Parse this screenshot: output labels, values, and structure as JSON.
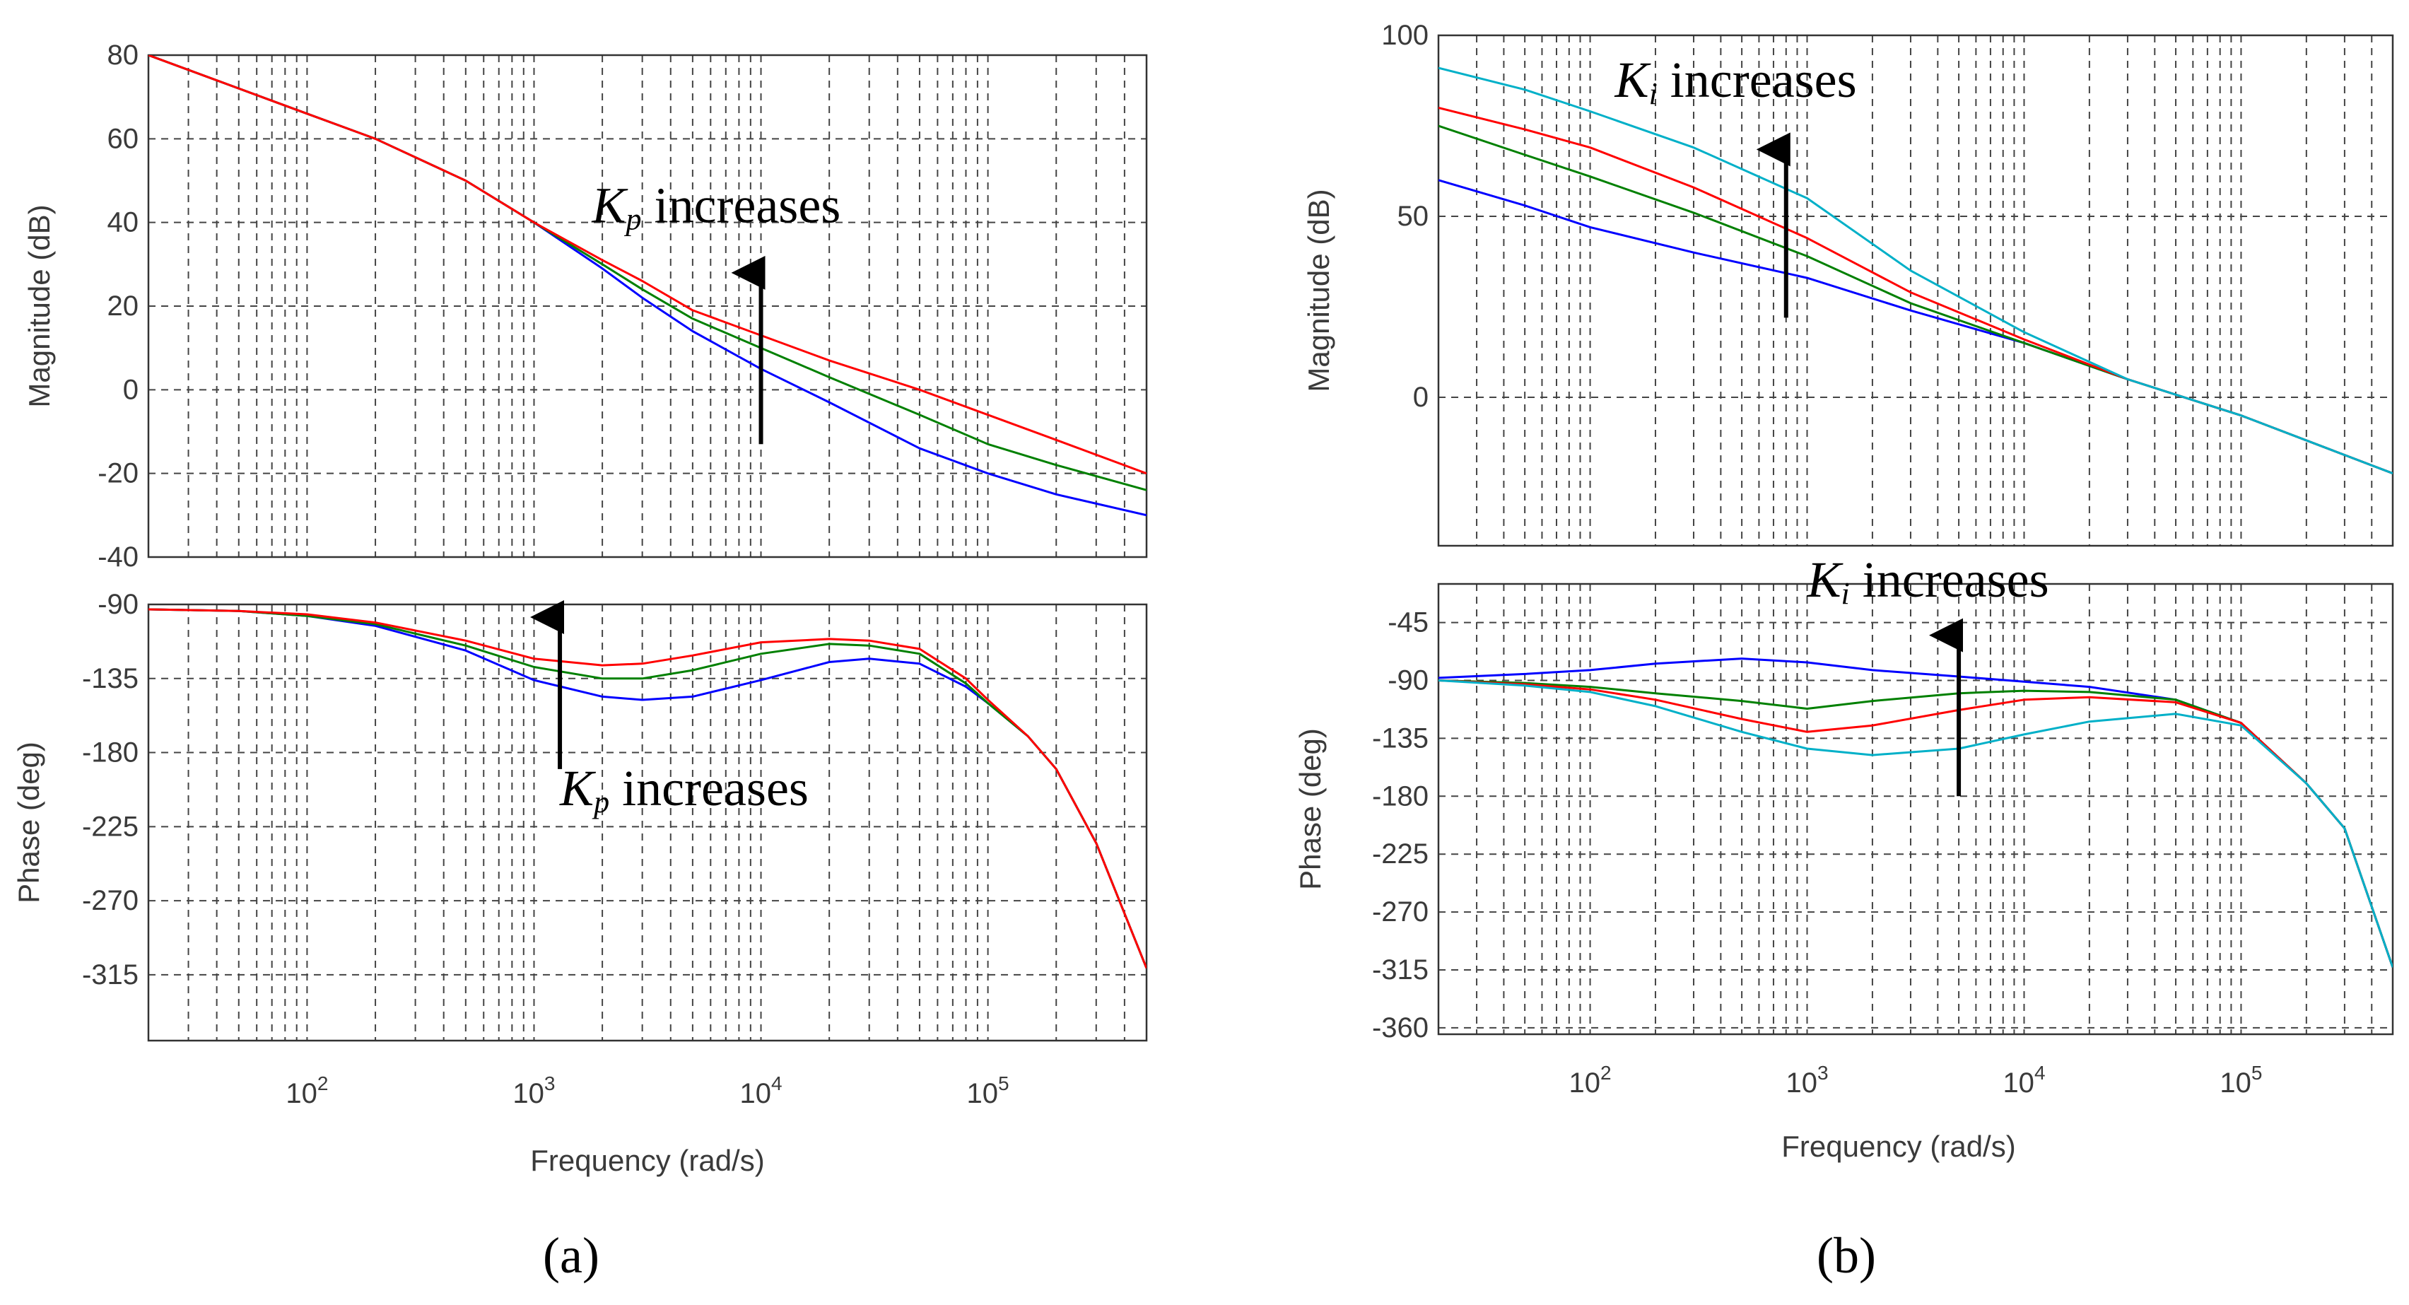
{
  "chart_data": [
    {
      "panel_label": "(a)",
      "type": "line",
      "xlabel": "Frequency  (rad/s)",
      "xscale": "log",
      "xlim": [
        20,
        500000
      ],
      "xticks": [
        100,
        1000,
        10000,
        100000
      ],
      "xtick_base": "10",
      "xtick_exponents": [
        "2",
        "3",
        "4",
        "5"
      ],
      "grid": true,
      "colors": [
        "#0000ff",
        "#008000",
        "#ff0000"
      ],
      "subplots": [
        {
          "name": "magnitude",
          "ylabel": "Magnitude (dB)",
          "ylim": [
            -40,
            80
          ],
          "yticks": [
            -40,
            -20,
            0,
            20,
            40,
            60,
            80
          ],
          "annotation": {
            "symbol": "K",
            "subscript": "p",
            "text": " increases",
            "arrow_x": 10000,
            "arrow_from": -13,
            "arrow_to": 31,
            "text_at": [
              1800,
              40
            ]
          },
          "x": [
            20,
            100,
            200,
            500,
            1000,
            2000,
            3000,
            5000,
            10000,
            20000,
            50000,
            100000,
            200000,
            500000
          ],
          "series": [
            {
              "color": "#0000ff",
              "values": [
                80,
                66,
                60,
                50,
                40,
                29,
                22,
                14,
                5,
                -3,
                -14,
                -20,
                -25,
                -30
              ]
            },
            {
              "color": "#008000",
              "values": [
                80,
                66,
                60,
                50,
                40,
                30,
                24,
                17,
                10,
                3,
                -6,
                -13,
                -18,
                -24
              ]
            },
            {
              "color": "#ff0000",
              "values": [
                80,
                66,
                60,
                50,
                40,
                31,
                26,
                19,
                13,
                7,
                0,
                -6,
                -12,
                -20
              ]
            }
          ]
        },
        {
          "name": "phase",
          "ylabel": "Phase (deg)",
          "ylim": [
            -355,
            -90
          ],
          "yticks": [
            -90,
            -135,
            -180,
            -225,
            -270,
            -315
          ],
          "annotation": {
            "symbol": "K",
            "subscript": "p",
            "text": " increases",
            "arrow_x": 1300,
            "arrow_from": -190,
            "arrow_to": -90,
            "text_at": [
              1300,
              -212
            ]
          },
          "x": [
            20,
            50,
            100,
            200,
            500,
            1000,
            2000,
            3000,
            5000,
            10000,
            20000,
            30000,
            50000,
            80000,
            100000,
            150000,
            200000,
            300000,
            500000
          ],
          "series": [
            {
              "color": "#0000ff",
              "values": [
                -93,
                -94,
                -97,
                -103,
                -118,
                -136,
                -146,
                -148,
                -146,
                -136,
                -125,
                -123,
                -126,
                -140,
                -150,
                -170,
                -190,
                -235,
                -311
              ]
            },
            {
              "color": "#008000",
              "values": [
                -93,
                -94,
                -97,
                -102,
                -115,
                -128,
                -135,
                -135,
                -130,
                -120,
                -114,
                -115,
                -120,
                -138,
                -150,
                -170,
                -190,
                -235,
                -311
              ]
            },
            {
              "color": "#ff0000",
              "values": [
                -93,
                -94,
                -96,
                -101,
                -112,
                -123,
                -127,
                -126,
                -121,
                -113,
                -111,
                -112,
                -117,
                -135,
                -148,
                -170,
                -190,
                -235,
                -311
              ]
            }
          ]
        }
      ]
    },
    {
      "panel_label": "(b)",
      "type": "line",
      "xlabel": "Frequency  (rad/s)",
      "xscale": "log",
      "xlim": [
        20,
        500000
      ],
      "xticks": [
        100,
        1000,
        10000,
        100000
      ],
      "xtick_base": "10",
      "xtick_exponents": [
        "2",
        "3",
        "4",
        "5"
      ],
      "grid": true,
      "colors": [
        "#0000ff",
        "#008000",
        "#ff0000",
        "#00b0c8"
      ],
      "subplots": [
        {
          "name": "magnitude",
          "ylabel": "Magnitude (dB)",
          "ylim": [
            -41,
            100
          ],
          "yticks": [
            0,
            50,
            100
          ],
          "annotation": {
            "symbol": "K",
            "subscript": "i",
            "text": " increases",
            "arrow_x": 800,
            "arrow_from": 22,
            "arrow_to": 72,
            "text_at": [
              130,
              83
            ]
          },
          "x": [
            20,
            50,
            100,
            300,
            1000,
            3000,
            10000,
            30000,
            100000,
            500000
          ],
          "series": [
            {
              "color": "#0000ff",
              "values": [
                60,
                53,
                47,
                40,
                33,
                24,
                15,
                5,
                -5,
                -21
              ]
            },
            {
              "color": "#008000",
              "values": [
                75,
                67,
                61,
                51,
                39,
                26,
                15,
                5,
                -5,
                -21
              ]
            },
            {
              "color": "#ff0000",
              "values": [
                80,
                74,
                69,
                58,
                44,
                29,
                16,
                5,
                -5,
                -21
              ]
            },
            {
              "color": "#00b0c8",
              "values": [
                91,
                85,
                79,
                69,
                55,
                35,
                18,
                5,
                -5,
                -21
              ]
            }
          ]
        },
        {
          "name": "phase",
          "ylabel": "Phase (deg)",
          "ylim": [
            -365,
            -15
          ],
          "yticks": [
            -45,
            -90,
            -135,
            -180,
            -225,
            -270,
            -315,
            -360
          ],
          "annotation": {
            "symbol": "K",
            "subscript": "i",
            "text": " increases",
            "arrow_x": 5000,
            "arrow_from": -180,
            "arrow_to": -45,
            "text_at": [
              1000,
              -25
            ]
          },
          "x": [
            20,
            50,
            100,
            200,
            500,
            1000,
            2000,
            5000,
            10000,
            20000,
            50000,
            100000,
            200000,
            300000,
            500000
          ],
          "series": [
            {
              "color": "#0000ff",
              "values": [
                -88,
                -85,
                -82,
                -77,
                -73,
                -76,
                -82,
                -87,
                -91,
                -95,
                -105,
                -123,
                -170,
                -205,
                -313
              ]
            },
            {
              "color": "#008000",
              "values": [
                -90,
                -92,
                -95,
                -100,
                -106,
                -112,
                -106,
                -100,
                -98,
                -99,
                -105,
                -123,
                -170,
                -205,
                -313
              ]
            },
            {
              "color": "#ff0000",
              "values": [
                -90,
                -93,
                -97,
                -105,
                -120,
                -130,
                -125,
                -113,
                -105,
                -103,
                -107,
                -123,
                -170,
                -205,
                -313
              ]
            },
            {
              "color": "#00b0c8",
              "values": [
                -90,
                -94,
                -99,
                -110,
                -130,
                -143,
                -148,
                -143,
                -132,
                -122,
                -116,
                -125,
                -170,
                -205,
                -313
              ]
            }
          ]
        }
      ]
    }
  ]
}
